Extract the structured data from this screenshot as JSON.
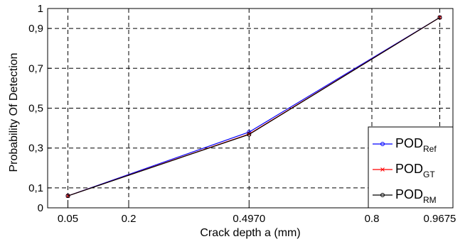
{
  "chart_data": {
    "type": "line",
    "xlabel": "Crack depth a (mm)",
    "ylabel": "Probability Of Detection",
    "xlim": [
      0.0,
      1.0
    ],
    "ylim": [
      0,
      1
    ],
    "x_ticks": [
      0.05,
      0.2,
      0.497,
      0.8,
      0.9675
    ],
    "x_tick_labels": [
      "0.05",
      "0.2",
      "0.4970",
      "0.8",
      "0.9675"
    ],
    "y_ticks": [
      0,
      0.1,
      0.3,
      0.5,
      0.7,
      0.9,
      1
    ],
    "y_tick_labels": [
      "0",
      "0,1",
      "0,3",
      "0,5",
      "0,7",
      "0,9",
      "1"
    ],
    "grid": true,
    "legend_position": "bottom-right",
    "series": [
      {
        "name": "POD",
        "subscript": "Ref",
        "color": "#0000ff",
        "marker": "circle",
        "x": [
          0.05,
          0.497,
          0.9675
        ],
        "y": [
          0.06,
          0.38,
          0.955
        ]
      },
      {
        "name": "POD",
        "subscript": "GT",
        "color": "#ff0000",
        "marker": "x",
        "x": [
          0.05,
          0.497,
          0.9675
        ],
        "y": [
          0.06,
          0.37,
          0.955
        ]
      },
      {
        "name": "POD",
        "subscript": "RM",
        "color": "#000000",
        "marker": "circle",
        "x": [
          0.05,
          0.497,
          0.9675
        ],
        "y": [
          0.06,
          0.368,
          0.955
        ]
      }
    ]
  }
}
